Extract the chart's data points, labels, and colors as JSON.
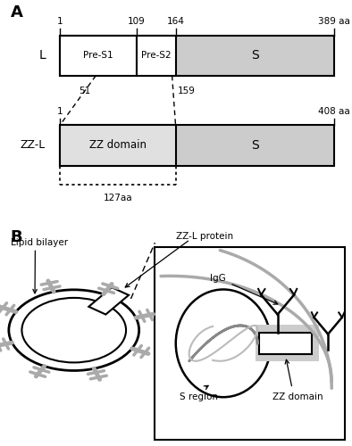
{
  "panel_A_label": "A",
  "panel_B_label": "B",
  "L_label": "L",
  "ZZL_label": "ZZ-L",
  "lipid_bilayer_label": "Lipid bilayer",
  "zzl_protein_label": "ZZ-L protein",
  "IgG_label": "IgG",
  "S_region_label": "S region",
  "ZZ_domain_label": "ZZ domain",
  "pre_s1_label": "Pre-S1",
  "pre_s2_label": "Pre-S2",
  "S_label": "S",
  "ZZ_domain_bar_label": "ZZ domain",
  "L_num_1": "1",
  "L_num_109": "109",
  "L_num_164": "164",
  "L_num_389": "389 aa",
  "ZZL_num_1": "1",
  "ZZL_num_408": "408 aa",
  "dashed_51": "51",
  "dashed_159": "159",
  "dotted_127": "127aa",
  "bar_color_white": "#ffffff",
  "bar_color_gray": "#cccccc",
  "bar_color_zz": "#e0e0e0",
  "spike_color": "#aaaaaa",
  "membrane_color": "#aaaaaa",
  "black": "#000000"
}
